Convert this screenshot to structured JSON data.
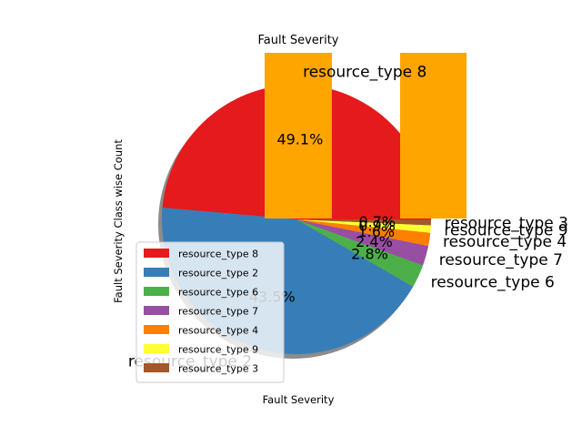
{
  "chart_data": {
    "type": "pie",
    "title": "Fault Severity",
    "xlabel": "Fault Severity",
    "ylabel": "Fault Severity Class wise Count",
    "labels": [
      "resource_type 8",
      "resource_type 2",
      "resource_type 6",
      "resource_type 7",
      "resource_type 4",
      "resource_type 9",
      "resource_type 3"
    ],
    "values": [
      49.1,
      43.5,
      2.8,
      2.4,
      1.6,
      0.9,
      0.7
    ],
    "pct_labels": [
      "49.1%",
      "43.5%",
      "2.8%",
      "2.4%",
      "1.6%",
      "0.9%",
      "0.7%"
    ],
    "colors": [
      "#e41a1c",
      "#377eb8",
      "#4daf4a",
      "#984ea3",
      "#ff7f00",
      "#ffff33",
      "#a65628"
    ],
    "legend": [
      "resource_type 8",
      "resource_type 2",
      "resource_type 6",
      "resource_type 7",
      "resource_type 4",
      "resource_type 9",
      "resource_type 3"
    ],
    "legend_position": "lower left",
    "shadow": true,
    "overlay_bars": {
      "color": "#ffa500",
      "count": 2
    }
  }
}
